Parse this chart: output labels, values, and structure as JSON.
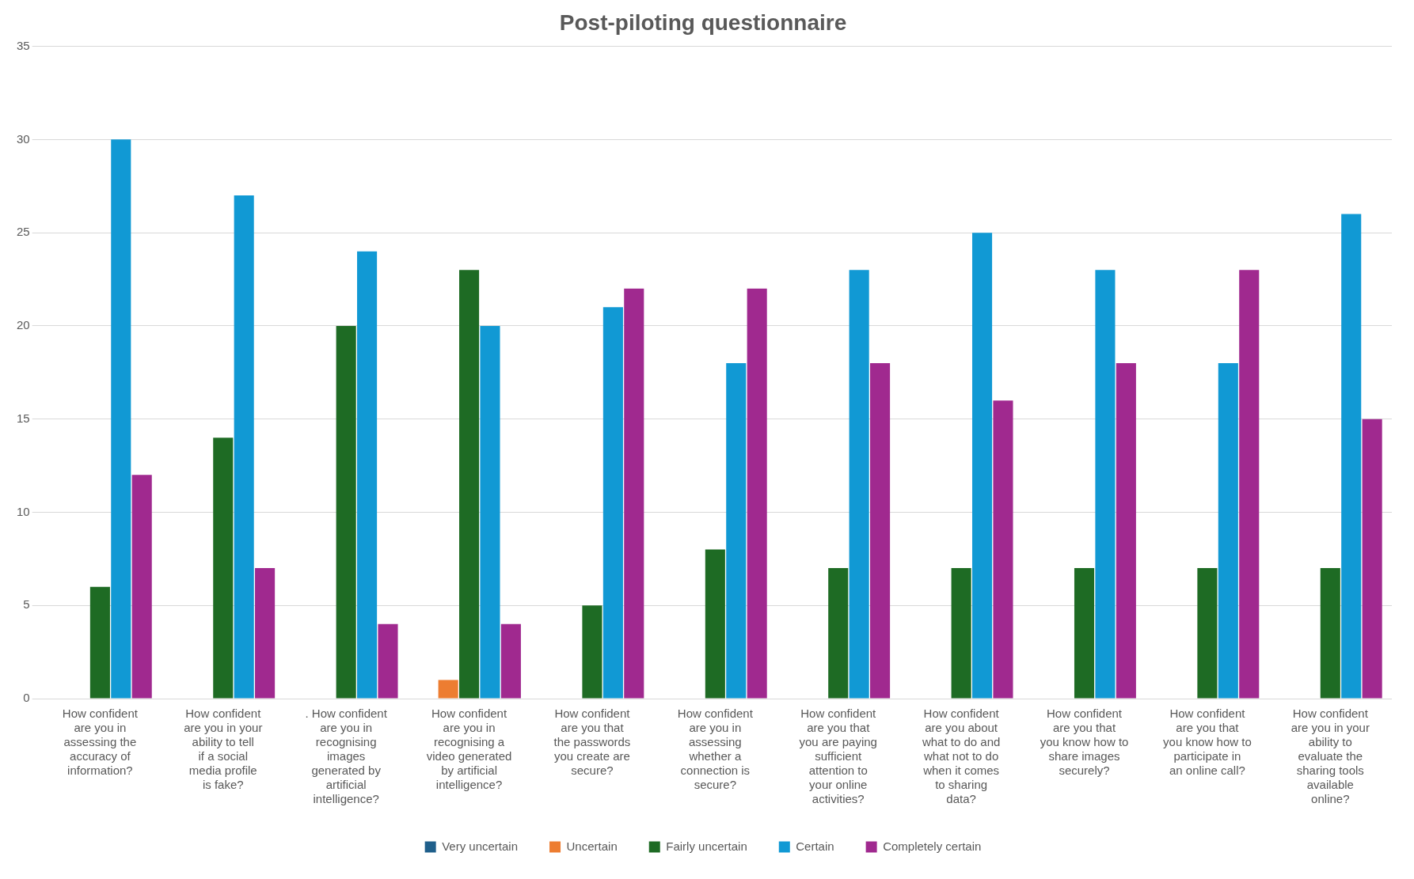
{
  "chart_data": {
    "type": "bar",
    "title": "Post-piloting questionnaire",
    "categories": [
      "How confident are you in assessing the accuracy of information?",
      "How confident are you in your ability to tell if a social media profile is fake?",
      ". How confident are you in recognising images generated by artificial intelligence?",
      "How confident are you in recognising a video generated by artificial intelligence?",
      "How confident are you that the passwords you create are secure?",
      "How confident are you in assessing whether a connection is secure?",
      "How confident are you that you are paying sufficient attention to your online activities?",
      "How confident are you about what to do and what not to do when it comes to sharing data?",
      "How confident are you that you know how to share images securely?",
      "How confident are you that you know how to participate in an online call?",
      "How confident are you in your ability to evaluate the sharing tools available online?"
    ],
    "series": [
      {
        "name": "Very uncertain",
        "color": "#1f5f8b",
        "values": [
          0,
          0,
          0,
          0,
          0,
          0,
          0,
          0,
          0,
          0,
          0
        ]
      },
      {
        "name": "Uncertain",
        "color": "#ed7d31",
        "values": [
          0,
          0,
          0,
          1,
          0,
          0,
          0,
          0,
          0,
          0,
          0
        ]
      },
      {
        "name": "Fairly uncertain",
        "color": "#1e6b24",
        "values": [
          6,
          14,
          20,
          23,
          5,
          8,
          7,
          7,
          7,
          7,
          7
        ]
      },
      {
        "name": "Certain",
        "color": "#1199d4",
        "values": [
          30,
          27,
          24,
          20,
          21,
          18,
          23,
          25,
          23,
          18,
          26
        ]
      },
      {
        "name": "Completely certain",
        "color": "#a0298f",
        "values": [
          12,
          7,
          4,
          4,
          22,
          22,
          18,
          16,
          18,
          23,
          15
        ]
      }
    ],
    "ylim": [
      0,
      35
    ],
    "yticks": [
      0,
      5,
      10,
      15,
      20,
      25,
      30,
      35
    ],
    "grid": "y",
    "legend": "bottom"
  }
}
